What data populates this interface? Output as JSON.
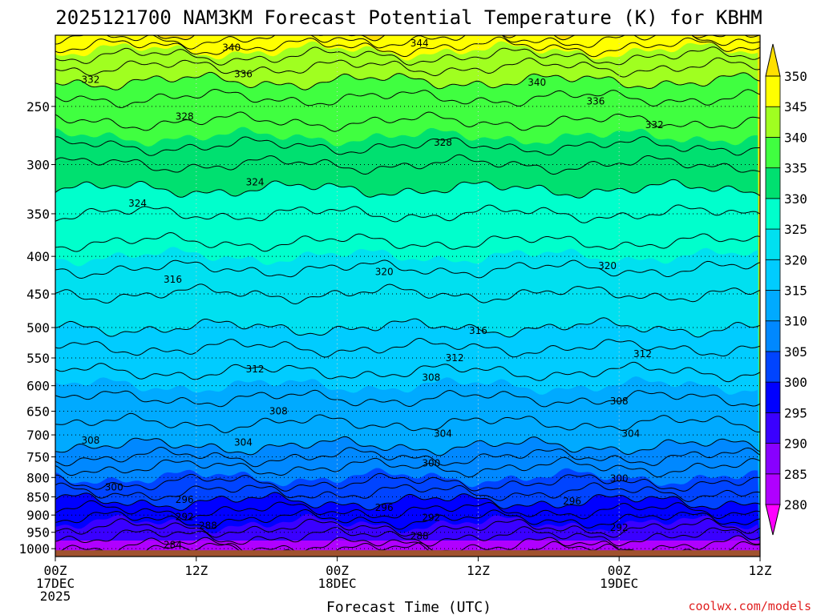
{
  "chart_data": {
    "type": "heatmap",
    "title": "2025121700 NAM3KM Forecast Potential Temperature (K) for KBHM",
    "xlabel": "Forecast Time (UTC)",
    "ylabel": "",
    "credit": "coolwx.com/models",
    "x_ticks": [
      {
        "hour": 0,
        "lines": [
          "00Z",
          "17DEC",
          "2025"
        ]
      },
      {
        "hour": 12,
        "lines": [
          "12Z"
        ]
      },
      {
        "hour": 24,
        "lines": [
          "00Z",
          "18DEC"
        ]
      },
      {
        "hour": 36,
        "lines": [
          "12Z"
        ]
      },
      {
        "hour": 48,
        "lines": [
          "00Z",
          "19DEC"
        ]
      },
      {
        "hour": 60,
        "lines": [
          "12Z"
        ]
      }
    ],
    "xlim": [
      0,
      60
    ],
    "y_ticks": [
      250,
      300,
      350,
      400,
      450,
      500,
      550,
      600,
      650,
      700,
      750,
      800,
      850,
      900,
      950,
      1000
    ],
    "ylim_hpa": [
      200,
      1025
    ],
    "surface_pressure_hpa": 1005,
    "colorbar": {
      "levels": [
        280,
        285,
        290,
        295,
        300,
        305,
        310,
        315,
        320,
        325,
        330,
        335,
        340,
        345,
        350
      ],
      "colors": [
        "#ff00ff",
        "#b000ff",
        "#8800ff",
        "#3a00ff",
        "#0000ff",
        "#0044ff",
        "#0088ff",
        "#00aaff",
        "#00ccff",
        "#00e0f0",
        "#00ffcc",
        "#00e070",
        "#40ff40",
        "#a0ff20",
        "#ffff00",
        "#ffe000"
      ]
    },
    "theta_profile": {
      "pressure_hpa": [
        1005,
        975,
        950,
        925,
        900,
        875,
        850,
        825,
        800,
        775,
        750,
        725,
        700,
        675,
        650,
        600,
        550,
        500,
        450,
        400,
        350,
        300,
        275,
        250,
        225,
        210,
        200
      ],
      "theta_k": [
        284,
        286,
        288,
        290,
        292,
        294,
        296,
        298,
        300,
        301,
        303,
        305,
        306,
        307,
        308,
        310,
        312,
        315,
        317,
        320,
        323,
        327,
        330,
        332,
        336,
        340,
        344
      ]
    },
    "contour_labels": [
      {
        "text": "340",
        "hour": 15,
        "p": 208
      },
      {
        "text": "344",
        "hour": 31,
        "p": 205
      },
      {
        "text": "332",
        "hour": 3,
        "p": 230
      },
      {
        "text": "336",
        "hour": 16,
        "p": 226
      },
      {
        "text": "340",
        "hour": 41,
        "p": 232
      },
      {
        "text": "336",
        "hour": 46,
        "p": 246
      },
      {
        "text": "328",
        "hour": 11,
        "p": 258
      },
      {
        "text": "332",
        "hour": 51,
        "p": 265
      },
      {
        "text": "328",
        "hour": 33,
        "p": 280
      },
      {
        "text": "324",
        "hour": 17,
        "p": 317
      },
      {
        "text": "324",
        "hour": 7,
        "p": 339
      },
      {
        "text": "316",
        "hour": 10,
        "p": 430
      },
      {
        "text": "320",
        "hour": 28,
        "p": 420
      },
      {
        "text": "320",
        "hour": 47,
        "p": 412
      },
      {
        "text": "316",
        "hour": 36,
        "p": 505
      },
      {
        "text": "312",
        "hour": 34,
        "p": 550
      },
      {
        "text": "312",
        "hour": 50,
        "p": 543
      },
      {
        "text": "312",
        "hour": 17,
        "p": 570
      },
      {
        "text": "308",
        "hour": 32,
        "p": 585
      },
      {
        "text": "308",
        "hour": 48,
        "p": 630
      },
      {
        "text": "308",
        "hour": 19,
        "p": 650
      },
      {
        "text": "304",
        "hour": 33,
        "p": 697
      },
      {
        "text": "304",
        "hour": 49,
        "p": 697
      },
      {
        "text": "308",
        "hour": 3,
        "p": 712
      },
      {
        "text": "304",
        "hour": 16,
        "p": 717
      },
      {
        "text": "300",
        "hour": 32,
        "p": 765
      },
      {
        "text": "300",
        "hour": 48,
        "p": 802
      },
      {
        "text": "300",
        "hour": 5,
        "p": 825
      },
      {
        "text": "296",
        "hour": 11,
        "p": 858
      },
      {
        "text": "296",
        "hour": 28,
        "p": 880
      },
      {
        "text": "296",
        "hour": 44,
        "p": 862
      },
      {
        "text": "292",
        "hour": 11,
        "p": 905
      },
      {
        "text": "292",
        "hour": 32,
        "p": 908
      },
      {
        "text": "292",
        "hour": 48,
        "p": 936
      },
      {
        "text": "288",
        "hour": 13,
        "p": 930
      },
      {
        "text": "288",
        "hour": 31,
        "p": 962
      },
      {
        "text": "284",
        "hour": 10,
        "p": 988
      }
    ]
  }
}
